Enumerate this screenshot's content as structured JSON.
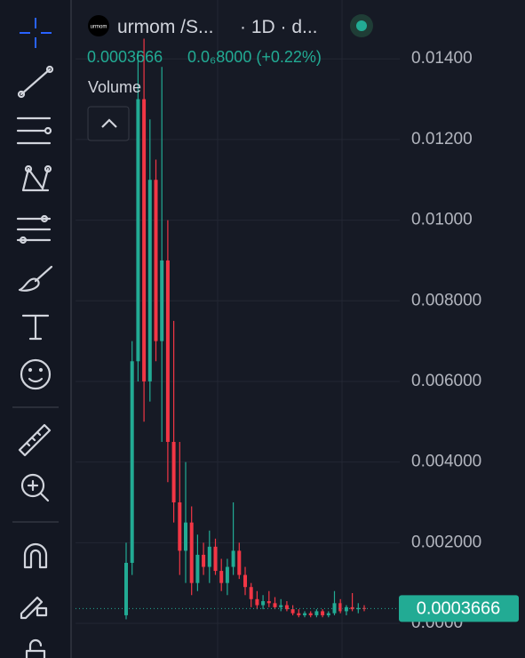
{
  "header": {
    "logo": "urmom",
    "symbol": "urmom /S...",
    "interval": "· 1D · d...",
    "price": "0.0003666",
    "change": "0.0₆8000 (+0.22%)",
    "indicator": "Volume"
  },
  "chart_data": {
    "type": "candlestick",
    "up_color": "#22ab94",
    "down_color": "#f23645",
    "open": [
      0.0002,
      0.0015,
      0.0065,
      0.013,
      0.006,
      0.011,
      0.007,
      0.009,
      0.0045,
      0.003,
      0.0018,
      0.0025,
      0.001,
      0.0017,
      0.0014,
      0.0019,
      0.0013,
      0.001,
      0.0014,
      0.0018,
      0.0012,
      0.0009,
      0.0006,
      0.00045,
      0.00055,
      0.0005,
      0.0004,
      0.00045,
      0.00035,
      0.00025,
      0.0002,
      0.00025,
      0.0002,
      0.0003,
      0.0002,
      0.00025,
      0.0005,
      0.0003,
      0.0004,
      0.00035,
      0.00038
    ],
    "high": [
      0.002,
      0.007,
      0.0142,
      0.0145,
      0.0125,
      0.0115,
      0.0138,
      0.01,
      0.0075,
      0.0045,
      0.004,
      0.0029,
      0.0022,
      0.002,
      0.0023,
      0.0021,
      0.0016,
      0.0016,
      0.003,
      0.002,
      0.0014,
      0.001,
      0.0008,
      0.0007,
      0.0008,
      0.00065,
      0.0006,
      0.00055,
      0.00045,
      0.00035,
      0.0003,
      0.0003,
      0.00035,
      0.00035,
      0.0003,
      0.0008,
      0.0006,
      0.00045,
      0.00075,
      0.0005,
      0.00045
    ],
    "low": [
      0.0001,
      0.0012,
      0.006,
      0.005,
      0.0055,
      0.0065,
      0.0045,
      0.0035,
      0.0025,
      0.0012,
      0.001,
      0.0007,
      0.0008,
      0.0012,
      0.001,
      0.0012,
      0.0008,
      0.0007,
      0.0012,
      0.0011,
      0.0007,
      0.0004,
      0.00035,
      0.00035,
      0.0004,
      0.00035,
      0.0003,
      0.0003,
      0.0002,
      0.00015,
      0.00015,
      0.00015,
      0.00015,
      0.00015,
      0.00015,
      0.0002,
      0.00025,
      0.0002,
      0.0003,
      0.00025,
      0.0003
    ],
    "close": [
      0.0015,
      0.0065,
      0.013,
      0.006,
      0.011,
      0.007,
      0.009,
      0.0045,
      0.003,
      0.0018,
      0.0025,
      0.001,
      0.0017,
      0.0014,
      0.0019,
      0.0013,
      0.001,
      0.0014,
      0.0018,
      0.0012,
      0.0009,
      0.0006,
      0.00045,
      0.00055,
      0.0005,
      0.0004,
      0.00045,
      0.00035,
      0.00025,
      0.0002,
      0.00025,
      0.0002,
      0.0003,
      0.0002,
      0.00025,
      0.0005,
      0.0003,
      0.0004,
      0.00035,
      0.00038,
      0.0003666
    ],
    "ylim": [
      -0.00086,
      0.01546
    ],
    "yticks": [
      {
        "value": 0.014,
        "label": "0.01400"
      },
      {
        "value": 0.012,
        "label": "0.01200"
      },
      {
        "value": 0.01,
        "label": "0.01000"
      },
      {
        "value": 0.008,
        "label": "0.008000"
      },
      {
        "value": 0.006,
        "label": "0.006000"
      },
      {
        "value": 0.004,
        "label": "0.004000"
      },
      {
        "value": 0.002,
        "label": "0.002000"
      },
      {
        "value": 0,
        "label": "0.0000"
      }
    ],
    "grid": true,
    "last_price": {
      "value": 0.0003666,
      "label": "0.0003666"
    }
  }
}
